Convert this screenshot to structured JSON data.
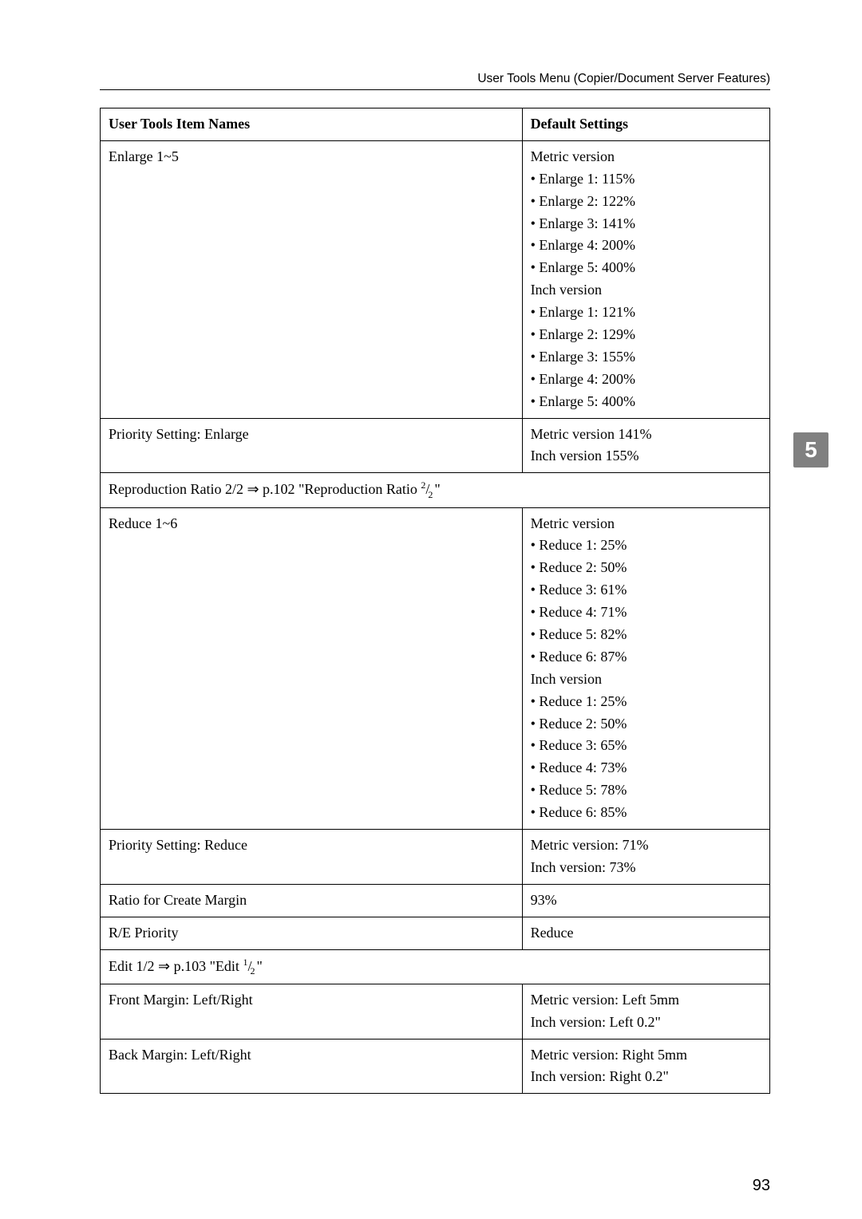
{
  "header": {
    "breadcrumb": "User Tools Menu (Copier/Document Server Features)"
  },
  "side_tab": "5",
  "page_number": "93",
  "typography": {
    "body_font": "Book Antiqua / Palatino serif",
    "header_font": "Arial / Helvetica sans-serif",
    "body_size_pt": 13,
    "header_size_pt": 11,
    "side_tab_bg": "#808080",
    "side_tab_fg": "#ffffff",
    "border_color": "#000000",
    "bg_color": "#ffffff"
  },
  "table": {
    "columns": [
      "User Tools Item Names",
      "Default Settings"
    ],
    "column_widths_pct": [
      63,
      37
    ],
    "rows": [
      {
        "name": "Enlarge 1~5",
        "default_lines": [
          "Metric version",
          "• Enlarge 1: 115%",
          "• Enlarge 2: 122%",
          "• Enlarge 3: 141%",
          "• Enlarge 4: 200%",
          "• Enlarge 5: 400%",
          "Inch version",
          "• Enlarge 1: 121%",
          "• Enlarge 2: 129%",
          "• Enlarge 3: 155%",
          "• Enlarge 4: 200%",
          "• Enlarge 5: 400%"
        ]
      },
      {
        "name": "Priority Setting: Enlarge",
        "default_lines": [
          "Metric version 141%",
          "Inch version 155%"
        ]
      },
      {
        "section": true,
        "text_prefix": "Reproduction Ratio 2/2 ⇒ p.102 \"Reproduction Ratio ",
        "frac_num": "2",
        "frac_den": "2",
        "text_suffix": "\""
      },
      {
        "name": "Reduce 1~6",
        "default_lines": [
          "Metric version",
          "• Reduce 1: 25%",
          "• Reduce 2: 50%",
          "• Reduce 3: 61%",
          "• Reduce 4: 71%",
          "• Reduce 5: 82%",
          "• Reduce 6: 87%",
          "Inch version",
          "• Reduce 1: 25%",
          "• Reduce 2: 50%",
          "• Reduce 3: 65%",
          "• Reduce 4: 73%",
          "• Reduce 5: 78%",
          "• Reduce 6: 85%"
        ]
      },
      {
        "name": "Priority Setting: Reduce",
        "default_lines": [
          "Metric version: 71%",
          "Inch version: 73%"
        ]
      },
      {
        "name": "Ratio for Create Margin",
        "default_lines": [
          "93%"
        ]
      },
      {
        "name": "R/E Priority",
        "default_lines": [
          "Reduce"
        ]
      },
      {
        "section": true,
        "text_prefix": "Edit 1/2 ⇒ p.103 \"Edit ",
        "frac_num": "1",
        "frac_den": "2",
        "text_suffix": "\""
      },
      {
        "name": "Front Margin: Left/Right",
        "default_lines": [
          "Metric version: Left 5mm",
          "Inch version: Left 0.2\""
        ]
      },
      {
        "name": "Back Margin: Left/Right",
        "default_lines": [
          "Metric version: Right 5mm",
          "Inch version: Right 0.2\""
        ]
      }
    ]
  }
}
